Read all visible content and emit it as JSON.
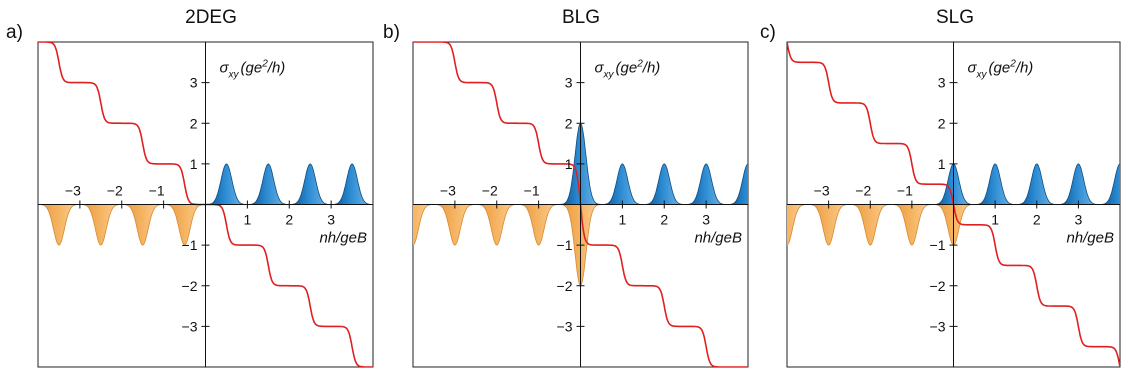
{
  "chart_data": [
    {
      "panel_label": "a)",
      "title": "2DEG",
      "type": "line",
      "ylabel_parts": [
        "σ",
        "xy",
        "(ge",
        "2",
        "/h)"
      ],
      "xlabel": "nh/geB",
      "xlim": [
        -4,
        4
      ],
      "ylim": [
        -4,
        4
      ],
      "x_ticks": [
        -3,
        -2,
        -1,
        1,
        2,
        3
      ],
      "y_ticks": [
        -3,
        -2,
        -1,
        1,
        2,
        3
      ],
      "x_tick_labels": [
        "−3",
        "−2",
        "−1",
        "1",
        "2",
        "3"
      ],
      "y_tick_labels": [
        "−3",
        "−2",
        "−1",
        "1",
        "2",
        "3"
      ],
      "series": [
        {
          "kind": "steps",
          "color": "#e02020",
          "step_centers": [
            -3.5,
            -2.5,
            -1.5,
            -0.5,
            0.5,
            1.5,
            2.5,
            3.5
          ],
          "plateaus": [
            4,
            3,
            2,
            1,
            0,
            -1,
            -2,
            -3,
            -4
          ]
        },
        {
          "kind": "peaks",
          "color": "#1a72b8",
          "sign": 1,
          "peak_centers": [
            0.5,
            1.5,
            2.5,
            3.5
          ],
          "peak_heights": [
            1,
            1,
            1,
            1
          ]
        },
        {
          "kind": "peaks",
          "color": "#f0a848",
          "sign": -1,
          "peak_centers": [
            -0.5,
            -1.5,
            -2.5,
            -3.5
          ],
          "peak_heights": [
            1,
            1,
            1,
            1
          ]
        }
      ]
    },
    {
      "panel_label": "b)",
      "title": "BLG",
      "type": "line",
      "ylabel_parts": [
        "σ",
        "xy",
        "(ge",
        "2",
        "/h)"
      ],
      "xlabel": "nh/geB",
      "xlim": [
        -4,
        4
      ],
      "ylim": [
        -4,
        4
      ],
      "x_ticks": [
        -3,
        -2,
        -1,
        1,
        2,
        3
      ],
      "y_ticks": [
        -3,
        -2,
        -1,
        1,
        2,
        3
      ],
      "x_tick_labels": [
        "−3",
        "−2",
        "−1",
        "1",
        "2",
        "3"
      ],
      "y_tick_labels": [
        "−3",
        "−2",
        "−1",
        "1",
        "2",
        "3"
      ],
      "series": [
        {
          "kind": "steps",
          "color": "#e02020",
          "step_centers": [
            -3,
            -2,
            -1,
            0,
            0,
            1,
            2,
            3
          ],
          "plateaus": [
            4,
            3,
            2,
            1,
            0,
            -1,
            -2,
            -3,
            -4
          ]
        },
        {
          "kind": "peaks",
          "color": "#1a72b8",
          "sign": 1,
          "peak_centers": [
            0,
            1,
            2,
            3,
            4
          ],
          "peak_heights": [
            2,
            1,
            1,
            1,
            1
          ]
        },
        {
          "kind": "peaks",
          "color": "#f0a848",
          "sign": -1,
          "peak_centers": [
            0,
            -1,
            -2,
            -3,
            -4
          ],
          "peak_heights": [
            2,
            1,
            1,
            1,
            1
          ]
        }
      ]
    },
    {
      "panel_label": "c)",
      "title": "SLG",
      "type": "line",
      "ylabel_parts": [
        "σ",
        "xy",
        "(ge",
        "2",
        "/h)"
      ],
      "xlabel": "nh/geB",
      "xlim": [
        -4,
        4
      ],
      "ylim": [
        -4,
        4
      ],
      "x_ticks": [
        -3,
        -2,
        -1,
        1,
        2,
        3
      ],
      "y_ticks": [
        -3,
        -2,
        -1,
        1,
        2,
        3
      ],
      "x_tick_labels": [
        "−3",
        "−2",
        "−1",
        "1",
        "2",
        "3"
      ],
      "y_tick_labels": [
        "−3",
        "−2",
        "−1",
        "1",
        "2",
        "3"
      ],
      "series": [
        {
          "kind": "steps",
          "color": "#e02020",
          "step_centers": [
            -4,
            -3,
            -2,
            -1,
            0,
            1,
            2,
            3,
            4
          ],
          "plateaus": [
            4.5,
            3.5,
            2.5,
            1.5,
            0.5,
            -0.5,
            -1.5,
            -2.5,
            -3.5,
            -4.5
          ]
        },
        {
          "kind": "peaks",
          "color": "#1a72b8",
          "sign": 1,
          "peak_centers": [
            0,
            1,
            2,
            3,
            4
          ],
          "peak_heights": [
            1,
            1,
            1,
            1,
            1
          ]
        },
        {
          "kind": "peaks",
          "color": "#f0a848",
          "sign": -1,
          "peak_centers": [
            0,
            -1,
            -2,
            -3,
            -4
          ],
          "peak_heights": [
            1,
            1,
            1,
            1,
            1
          ]
        }
      ]
    }
  ]
}
